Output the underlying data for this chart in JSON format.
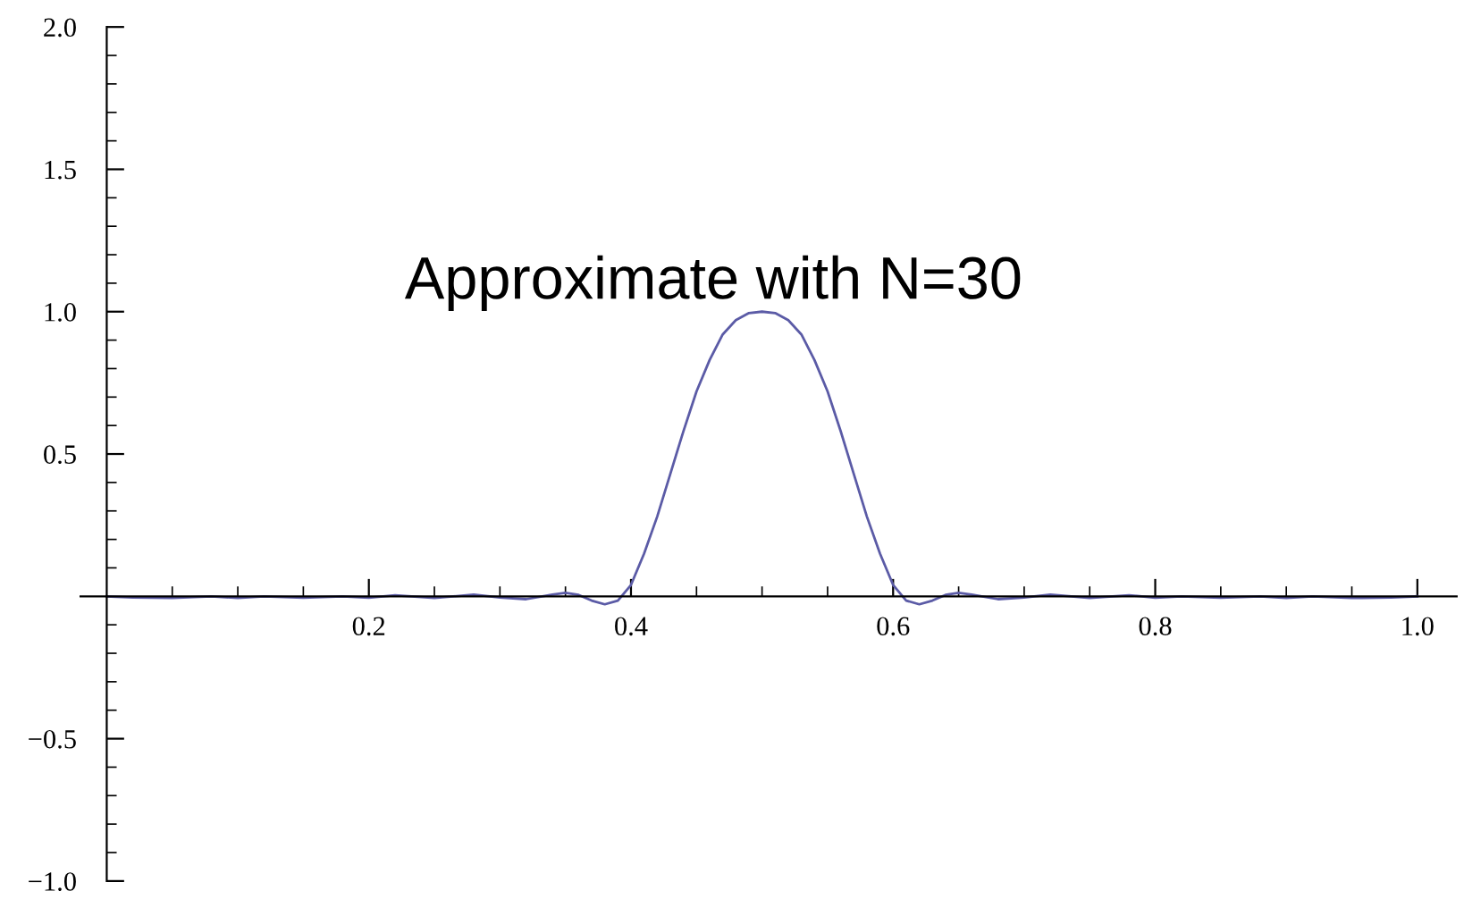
{
  "chart_data": {
    "type": "line",
    "annotations": [
      "Approximate with N=30"
    ],
    "series": [
      {
        "color": "#5b5ba6",
        "x": [
          0,
          0.02,
          0.05,
          0.08,
          0.1,
          0.12,
          0.15,
          0.18,
          0.2,
          0.22,
          0.25,
          0.28,
          0.3,
          0.32,
          0.34,
          0.35,
          0.36,
          0.37,
          0.38,
          0.39,
          0.4,
          0.41,
          0.42,
          0.43,
          0.44,
          0.45,
          0.46,
          0.47,
          0.48,
          0.49,
          0.5,
          0.51,
          0.52,
          0.53,
          0.54,
          0.55,
          0.56,
          0.57,
          0.58,
          0.59,
          0.6,
          0.61,
          0.62,
          0.63,
          0.64,
          0.65,
          0.66,
          0.68,
          0.7,
          0.72,
          0.75,
          0.78,
          0.8,
          0.82,
          0.85,
          0.88,
          0.9,
          0.92,
          0.95,
          0.98,
          1.0
        ],
        "values": [
          0,
          -0.004,
          -0.006,
          0,
          -0.006,
          0,
          -0.005,
          0,
          -0.005,
          0.004,
          -0.006,
          0.006,
          -0.004,
          -0.01,
          0.006,
          0.012,
          0.005,
          -0.015,
          -0.028,
          -0.015,
          0.04,
          0.15,
          0.28,
          0.43,
          0.58,
          0.72,
          0.83,
          0.92,
          0.97,
          0.995,
          1.0,
          0.995,
          0.97,
          0.92,
          0.83,
          0.72,
          0.58,
          0.43,
          0.28,
          0.15,
          0.04,
          -0.015,
          -0.028,
          -0.015,
          0.005,
          0.012,
          0.006,
          -0.01,
          -0.004,
          0.006,
          -0.006,
          0.004,
          -0.005,
          0,
          -0.005,
          0,
          -0.006,
          0,
          -0.006,
          -0.004,
          0
        ]
      }
    ],
    "xlim": [
      -0.02,
      1.03
    ],
    "ylim": [
      -1.0,
      2.0
    ],
    "xticks": [
      {
        "value": 0.05,
        "label": null
      },
      {
        "value": 0.1,
        "label": null
      },
      {
        "value": 0.15,
        "label": null
      },
      0.2,
      {
        "value": 0.25,
        "label": null
      },
      {
        "value": 0.3,
        "label": null
      },
      {
        "value": 0.35,
        "label": null
      },
      0.4,
      {
        "value": 0.45,
        "label": null
      },
      {
        "value": 0.5,
        "label": null
      },
      {
        "value": 0.55,
        "label": null
      },
      0.6,
      {
        "value": 0.65,
        "label": null
      },
      {
        "value": 0.7,
        "label": null
      },
      {
        "value": 0.75,
        "label": null
      },
      0.8,
      {
        "value": 0.85,
        "label": null
      },
      {
        "value": 0.9,
        "label": null
      },
      {
        "value": 0.95,
        "label": null
      },
      {
        "value": 1.0,
        "label": "1.0"
      }
    ],
    "yticks": [
      {
        "value": -1.0,
        "label": "−1.0"
      },
      {
        "value": -0.9,
        "label": null
      },
      {
        "value": -0.8,
        "label": null
      },
      {
        "value": -0.7,
        "label": null
      },
      {
        "value": -0.6,
        "label": null
      },
      {
        "value": -0.5,
        "label": "−0.5"
      },
      {
        "value": -0.4,
        "label": null
      },
      {
        "value": -0.3,
        "label": null
      },
      {
        "value": -0.2,
        "label": null
      },
      {
        "value": -0.1,
        "label": null
      },
      {
        "value": 0.1,
        "label": null
      },
      {
        "value": 0.2,
        "label": null
      },
      {
        "value": 0.3,
        "label": null
      },
      {
        "value": 0.4,
        "label": null
      },
      0.5,
      {
        "value": 0.6,
        "label": null
      },
      {
        "value": 0.7,
        "label": null
      },
      {
        "value": 0.8,
        "label": null
      },
      {
        "value": 0.9,
        "label": null
      },
      {
        "value": 1.0,
        "label": "1.0"
      },
      {
        "value": 1.1,
        "label": null
      },
      {
        "value": 1.2,
        "label": null
      },
      {
        "value": 1.3,
        "label": null
      },
      {
        "value": 1.4,
        "label": null
      },
      1.5,
      {
        "value": 1.6,
        "label": null
      },
      {
        "value": 1.7,
        "label": null
      },
      {
        "value": 1.8,
        "label": null
      },
      {
        "value": 1.9,
        "label": null
      },
      {
        "value": 2.0,
        "label": "2.0"
      }
    ],
    "grid": false,
    "legend": false,
    "marker": "none",
    "line_style": "solid"
  }
}
